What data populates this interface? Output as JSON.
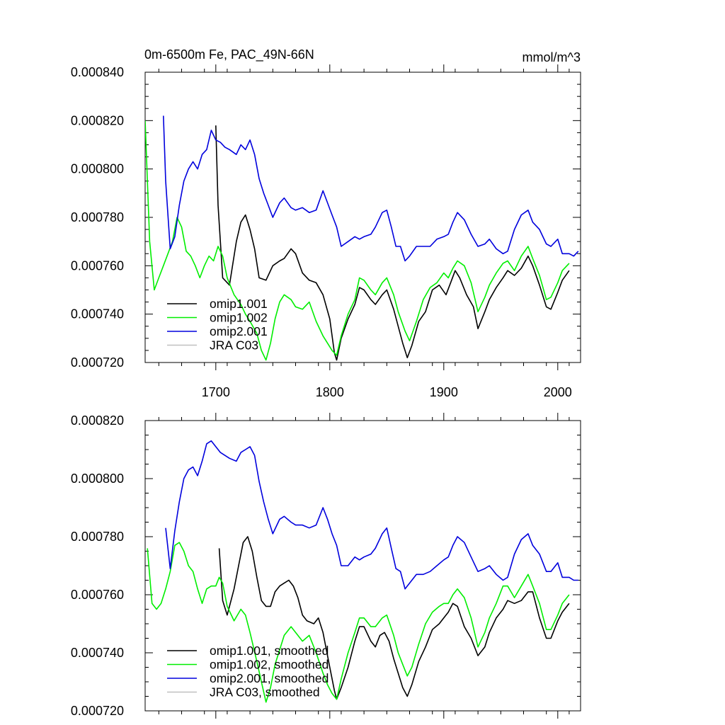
{
  "chart_data": [
    {
      "type": "line",
      "title": "0m-6500m Fe, PAC_49N-66N",
      "units": "mmol/m^3",
      "xlim": [
        1638,
        2020
      ],
      "ylim": [
        0.00072,
        0.00084
      ],
      "x_ticks": [
        1700,
        1800,
        1900,
        2000
      ],
      "y_ticks": [
        "0.000720",
        "0.000740",
        "0.000760",
        "0.000780",
        "0.000800",
        "0.000820",
        "0.000840"
      ],
      "legend_position": "bottom-left",
      "series": [
        {
          "name": "omip1.001",
          "color": "#000000",
          "x": [
            1700,
            1702,
            1706,
            1712,
            1718,
            1722,
            1726,
            1730,
            1734,
            1738,
            1744,
            1750,
            1756,
            1760,
            1766,
            1770,
            1776,
            1782,
            1788,
            1794,
            1800,
            1804,
            1806,
            1810,
            1816,
            1822,
            1826,
            1830,
            1836,
            1840,
            1846,
            1850,
            1856,
            1860,
            1864,
            1868,
            1872,
            1878,
            1884,
            1890,
            1896,
            1902,
            1906,
            1910,
            1914,
            1920,
            1926,
            1930,
            1936,
            1940,
            1946,
            1952,
            1956,
            1962,
            1968,
            1974,
            1978,
            1984,
            1990,
            1994,
            2000,
            2004,
            2010
          ],
          "y": [
            0.000818,
            0.000785,
            0.000755,
            0.000752,
            0.00077,
            0.000778,
            0.000781,
            0.000775,
            0.000767,
            0.000755,
            0.000754,
            0.00076,
            0.000762,
            0.000763,
            0.000767,
            0.000765,
            0.000757,
            0.000754,
            0.000753,
            0.000748,
            0.000738,
            0.000724,
            0.000721,
            0.00073,
            0.000738,
            0.000744,
            0.000751,
            0.00075,
            0.000746,
            0.000744,
            0.000748,
            0.00075,
            0.000742,
            0.000735,
            0.000728,
            0.000722,
            0.000727,
            0.000737,
            0.000741,
            0.00075,
            0.000752,
            0.000748,
            0.000753,
            0.000758,
            0.000755,
            0.000748,
            0.000743,
            0.000734,
            0.000741,
            0.000746,
            0.000751,
            0.000755,
            0.000758,
            0.000756,
            0.000759,
            0.000764,
            0.00076,
            0.000752,
            0.000743,
            0.000742,
            0.000749,
            0.000754,
            0.000758
          ]
        },
        {
          "name": "omip1.002",
          "color": "#00ee00",
          "x": [
            1638,
            1642,
            1646,
            1650,
            1654,
            1658,
            1662,
            1666,
            1670,
            1674,
            1678,
            1682,
            1686,
            1690,
            1694,
            1698,
            1702,
            1706,
            1710,
            1716,
            1722,
            1726,
            1730,
            1736,
            1740,
            1744,
            1748,
            1752,
            1756,
            1760,
            1766,
            1770,
            1776,
            1782,
            1788,
            1794,
            1798,
            1802,
            1806,
            1810,
            1816,
            1822,
            1826,
            1830,
            1836,
            1840,
            1846,
            1850,
            1856,
            1860,
            1866,
            1870,
            1876,
            1882,
            1888,
            1894,
            1900,
            1904,
            1908,
            1912,
            1918,
            1924,
            1930,
            1936,
            1940,
            1946,
            1952,
            1956,
            1962,
            1968,
            1974,
            1978,
            1984,
            1990,
            1994,
            2000,
            2004,
            2010
          ],
          "y": [
            0.00082,
            0.00077,
            0.00075,
            0.000755,
            0.00076,
            0.000765,
            0.00077,
            0.00078,
            0.000776,
            0.000766,
            0.000764,
            0.00076,
            0.000755,
            0.00076,
            0.000764,
            0.000762,
            0.000768,
            0.000764,
            0.000755,
            0.000748,
            0.000744,
            0.00074,
            0.000737,
            0.000732,
            0.000725,
            0.000721,
            0.000728,
            0.000738,
            0.000745,
            0.000748,
            0.000746,
            0.000743,
            0.000742,
            0.000745,
            0.000737,
            0.000731,
            0.000728,
            0.000725,
            0.000723,
            0.000731,
            0.00074,
            0.000746,
            0.000755,
            0.000754,
            0.00075,
            0.000748,
            0.000753,
            0.000755,
            0.000748,
            0.000741,
            0.000733,
            0.000729,
            0.000737,
            0.000746,
            0.000751,
            0.000753,
            0.000757,
            0.000755,
            0.000759,
            0.000762,
            0.00076,
            0.000753,
            0.000741,
            0.000747,
            0.000752,
            0.000757,
            0.000761,
            0.000762,
            0.000758,
            0.000764,
            0.000768,
            0.000763,
            0.000756,
            0.000746,
            0.000747,
            0.000753,
            0.000758,
            0.000761
          ]
        },
        {
          "name": "omip2.001",
          "color": "#0000dd",
          "x": [
            1654,
            1656,
            1660,
            1664,
            1668,
            1672,
            1676,
            1680,
            1684,
            1688,
            1692,
            1696,
            1700,
            1704,
            1708,
            1712,
            1718,
            1722,
            1726,
            1730,
            1734,
            1738,
            1742,
            1746,
            1750,
            1756,
            1760,
            1766,
            1770,
            1776,
            1782,
            1788,
            1794,
            1798,
            1802,
            1806,
            1810,
            1816,
            1822,
            1826,
            1830,
            1836,
            1840,
            1846,
            1850,
            1854,
            1858,
            1862,
            1866,
            1870,
            1876,
            1882,
            1888,
            1894,
            1900,
            1904,
            1908,
            1912,
            1918,
            1924,
            1930,
            1936,
            1940,
            1946,
            1952,
            1956,
            1962,
            1968,
            1974,
            1978,
            1984,
            1990,
            1994,
            2000,
            2004,
            2010,
            2014,
            2018
          ],
          "y": [
            0.000822,
            0.000795,
            0.000767,
            0.000772,
            0.000785,
            0.000795,
            0.0008,
            0.000803,
            0.0008,
            0.000806,
            0.000808,
            0.000816,
            0.000812,
            0.000811,
            0.000809,
            0.000808,
            0.000806,
            0.00081,
            0.000808,
            0.000812,
            0.000806,
            0.000796,
            0.00079,
            0.000785,
            0.00078,
            0.000786,
            0.000788,
            0.000784,
            0.000783,
            0.000784,
            0.000782,
            0.000783,
            0.000791,
            0.000786,
            0.000781,
            0.000776,
            0.000768,
            0.00077,
            0.000772,
            0.000771,
            0.000772,
            0.000773,
            0.000776,
            0.000782,
            0.000783,
            0.000776,
            0.000768,
            0.000768,
            0.000762,
            0.000764,
            0.000768,
            0.000768,
            0.000768,
            0.000771,
            0.000772,
            0.000773,
            0.000778,
            0.000782,
            0.000779,
            0.000773,
            0.000768,
            0.000769,
            0.000771,
            0.000767,
            0.000765,
            0.000766,
            0.000775,
            0.000781,
            0.000783,
            0.000778,
            0.000775,
            0.000769,
            0.000768,
            0.000771,
            0.000765,
            0.000765,
            0.000764,
            0.000766
          ]
        },
        {
          "name": "JRA C03",
          "color": "#c0c0c0",
          "x": [],
          "y": []
        }
      ]
    },
    {
      "type": "line",
      "xlim": [
        1638,
        2020
      ],
      "ylim": [
        0.00072,
        0.00082
      ],
      "x_ticks": [
        1700,
        1800,
        1900,
        2000
      ],
      "y_ticks": [
        "0.000720",
        "0.000740",
        "0.000760",
        "0.000780",
        "0.000800",
        "0.000820"
      ],
      "legend_position": "bottom-left",
      "series": [
        {
          "name": "omip1.001, smoothed",
          "color": "#000000",
          "x": [
            1703,
            1706,
            1710,
            1716,
            1720,
            1724,
            1728,
            1732,
            1736,
            1740,
            1744,
            1748,
            1752,
            1756,
            1760,
            1764,
            1768,
            1772,
            1776,
            1780,
            1786,
            1790,
            1794,
            1800,
            1804,
            1806,
            1810,
            1816,
            1822,
            1826,
            1830,
            1836,
            1840,
            1844,
            1848,
            1852,
            1856,
            1860,
            1864,
            1868,
            1872,
            1878,
            1884,
            1890,
            1896,
            1900,
            1904,
            1908,
            1912,
            1918,
            1924,
            1930,
            1936,
            1940,
            1946,
            1952,
            1956,
            1962,
            1968,
            1974,
            1978,
            1984,
            1990,
            1994,
            2000,
            2004,
            2010
          ],
          "y": [
            0.000776,
            0.000758,
            0.000753,
            0.000762,
            0.00077,
            0.000778,
            0.00078,
            0.000775,
            0.000766,
            0.000758,
            0.000756,
            0.000756,
            0.000761,
            0.000763,
            0.000764,
            0.000765,
            0.000763,
            0.000759,
            0.000753,
            0.000751,
            0.00075,
            0.000752,
            0.000747,
            0.000735,
            0.000727,
            0.000724,
            0.000728,
            0.000735,
            0.000744,
            0.000749,
            0.000749,
            0.000744,
            0.000742,
            0.000746,
            0.000747,
            0.000744,
            0.000738,
            0.000733,
            0.000728,
            0.000725,
            0.000729,
            0.000737,
            0.000742,
            0.000748,
            0.00075,
            0.000752,
            0.000754,
            0.000757,
            0.000756,
            0.000749,
            0.000745,
            0.000739,
            0.000742,
            0.000747,
            0.000752,
            0.000755,
            0.000758,
            0.000757,
            0.000758,
            0.000761,
            0.000761,
            0.000752,
            0.000745,
            0.000745,
            0.000751,
            0.000754,
            0.000757
          ]
        },
        {
          "name": "omip1.002, smoothed",
          "color": "#00ee00",
          "x": [
            1640,
            1644,
            1648,
            1652,
            1656,
            1660,
            1664,
            1668,
            1672,
            1676,
            1680,
            1684,
            1688,
            1692,
            1696,
            1700,
            1703,
            1706,
            1710,
            1716,
            1722,
            1726,
            1730,
            1736,
            1740,
            1744,
            1748,
            1752,
            1756,
            1760,
            1766,
            1770,
            1776,
            1782,
            1788,
            1794,
            1798,
            1802,
            1806,
            1810,
            1816,
            1822,
            1826,
            1830,
            1836,
            1840,
            1846,
            1850,
            1856,
            1860,
            1864,
            1868,
            1872,
            1878,
            1884,
            1890,
            1896,
            1900,
            1904,
            1908,
            1912,
            1918,
            1924,
            1930,
            1936,
            1940,
            1946,
            1952,
            1956,
            1962,
            1968,
            1974,
            1978,
            1984,
            1990,
            1994,
            2000,
            2004,
            2010
          ],
          "y": [
            0.000776,
            0.000757,
            0.000755,
            0.000757,
            0.000762,
            0.000768,
            0.000777,
            0.000778,
            0.000775,
            0.00077,
            0.000768,
            0.000762,
            0.000757,
            0.000762,
            0.000763,
            0.000763,
            0.000766,
            0.000764,
            0.000756,
            0.000751,
            0.000755,
            0.000753,
            0.000747,
            0.000737,
            0.00073,
            0.000723,
            0.000728,
            0.000736,
            0.000741,
            0.000746,
            0.000749,
            0.000747,
            0.000744,
            0.000746,
            0.00074,
            0.000733,
            0.000729,
            0.000726,
            0.000724,
            0.000731,
            0.00074,
            0.000747,
            0.000752,
            0.000752,
            0.000749,
            0.000749,
            0.000752,
            0.000753,
            0.000746,
            0.00074,
            0.000736,
            0.000732,
            0.000735,
            0.000743,
            0.00075,
            0.000754,
            0.000756,
            0.000757,
            0.000757,
            0.00076,
            0.000762,
            0.000759,
            0.000752,
            0.000742,
            0.000747,
            0.000752,
            0.000757,
            0.000763,
            0.000763,
            0.000759,
            0.000763,
            0.000767,
            0.000763,
            0.000757,
            0.000748,
            0.000748,
            0.000753,
            0.000757,
            0.00076
          ]
        },
        {
          "name": "omip2.001, smoothed",
          "color": "#0000dd",
          "x": [
            1656,
            1660,
            1664,
            1668,
            1672,
            1676,
            1680,
            1684,
            1688,
            1692,
            1696,
            1700,
            1704,
            1708,
            1712,
            1718,
            1722,
            1726,
            1730,
            1734,
            1738,
            1742,
            1746,
            1750,
            1756,
            1760,
            1766,
            1770,
            1776,
            1782,
            1788,
            1794,
            1798,
            1802,
            1806,
            1810,
            1816,
            1822,
            1826,
            1830,
            1836,
            1840,
            1846,
            1850,
            1854,
            1858,
            1862,
            1866,
            1870,
            1876,
            1882,
            1888,
            1894,
            1900,
            1904,
            1908,
            1912,
            1918,
            1924,
            1930,
            1936,
            1940,
            1946,
            1952,
            1956,
            1962,
            1968,
            1974,
            1978,
            1984,
            1990,
            1994,
            2000,
            2004,
            2010,
            2014,
            2018
          ],
          "y": [
            0.000783,
            0.000769,
            0.000782,
            0.000792,
            0.0008,
            0.000803,
            0.000804,
            0.000801,
            0.000806,
            0.000812,
            0.000813,
            0.000811,
            0.000809,
            0.000808,
            0.000807,
            0.000806,
            0.000809,
            0.00081,
            0.000811,
            0.000808,
            0.000799,
            0.000792,
            0.000786,
            0.000781,
            0.000786,
            0.000787,
            0.000785,
            0.000784,
            0.000784,
            0.000783,
            0.000784,
            0.00079,
            0.000786,
            0.000781,
            0.000777,
            0.00077,
            0.00077,
            0.000773,
            0.000772,
            0.000773,
            0.000774,
            0.000776,
            0.000781,
            0.000783,
            0.000776,
            0.000769,
            0.000768,
            0.000762,
            0.000764,
            0.000767,
            0.000767,
            0.000768,
            0.00077,
            0.000772,
            0.000773,
            0.000777,
            0.00078,
            0.000778,
            0.000773,
            0.000768,
            0.000769,
            0.00077,
            0.000767,
            0.000765,
            0.000766,
            0.000774,
            0.000779,
            0.000781,
            0.000777,
            0.000774,
            0.000768,
            0.000768,
            0.000771,
            0.000766,
            0.000766,
            0.000765,
            0.000765
          ]
        },
        {
          "name": "JRA C03, smoothed",
          "color": "#c0c0c0",
          "x": [],
          "y": []
        }
      ]
    }
  ]
}
